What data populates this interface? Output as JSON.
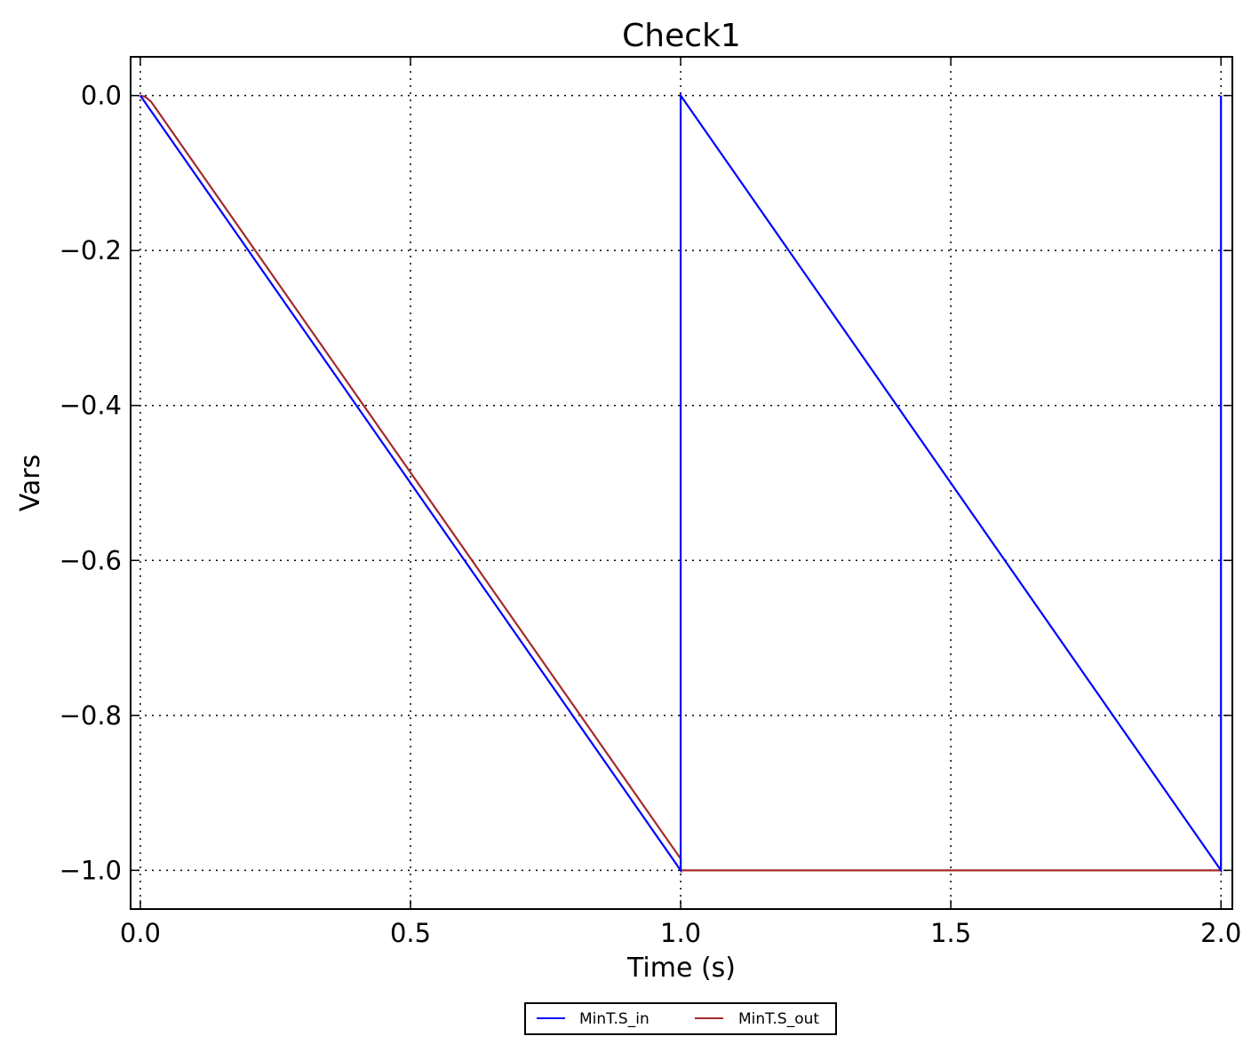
{
  "chart_data": {
    "type": "line",
    "title": "Check1",
    "xlabel": "Time (s)",
    "ylabel": "Vars",
    "xlim": [
      -0.018,
      2.021
    ],
    "ylim": [
      -1.05,
      0.05
    ],
    "xticks": [
      0.0,
      0.5,
      1.0,
      1.5,
      2.0
    ],
    "xtick_labels": [
      "0.0",
      "0.5",
      "1.0",
      "1.5",
      "2.0"
    ],
    "yticks": [
      0.0,
      -0.2,
      -0.4,
      -0.6,
      -0.8,
      -1.0
    ],
    "ytick_labels": [
      "0.0",
      "−0.2",
      "−0.4",
      "−0.6",
      "−0.8",
      "−1.0"
    ],
    "grid": true,
    "legend_placement": "bottom-center, below axes",
    "series": [
      {
        "name": "MinT.S_in",
        "color": "#0000ff",
        "x": [
          0.0,
          1.0,
          1.0,
          2.0,
          2.0
        ],
        "y": [
          0.0,
          -1.0,
          0.0,
          -1.0,
          0.0
        ]
      },
      {
        "name": "MinT.S_out",
        "color": "#a52a2a",
        "x": [
          0.0,
          0.01,
          0.02,
          0.03,
          1.0,
          1.0,
          2.0
        ],
        "y": [
          0.0,
          -0.002,
          -0.008,
          -0.018,
          -0.985,
          -1.0,
          -1.0
        ]
      }
    ]
  }
}
